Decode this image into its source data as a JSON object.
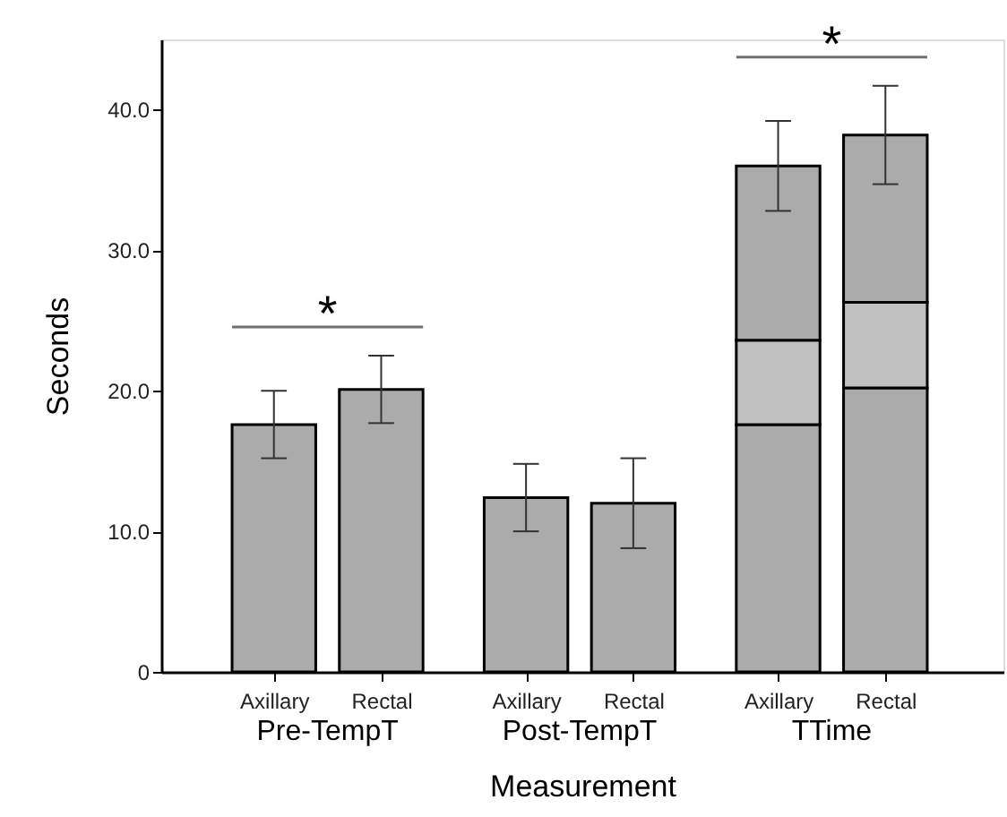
{
  "chart_data": {
    "type": "bar",
    "stacked": true,
    "xlabel": "Measurement",
    "ylabel": "Seconds",
    "categories": [
      "Axillary",
      "Rectal",
      "Axillary",
      "Rectal",
      "Axillary",
      "Rectal"
    ],
    "series": [
      {
        "color": "#ababab",
        "values": [
          17.6,
          20.1,
          null,
          null,
          17.6,
          20.2
        ],
        "errors": [
          2.4,
          2.4,
          null,
          null,
          null,
          null
        ]
      },
      {
        "color": "#c0c0c0",
        "values": [
          null,
          null,
          null,
          null,
          6.0,
          6.1
        ]
      },
      {
        "color": "#ababab",
        "values": [
          null,
          null,
          12.4,
          12.0,
          12.4,
          11.9
        ],
        "errors": [
          null,
          null,
          2.4,
          3.2,
          3.2,
          3.5
        ]
      }
    ],
    "ylim": [
      0,
      45
    ],
    "yticks": [
      0,
      {
        "value": 10,
        "label": "10.0"
      },
      {
        "value": 20,
        "label": "20.0"
      },
      {
        "value": 30,
        "label": "30.0"
      },
      {
        "value": 40,
        "label": "40.0"
      }
    ],
    "annotations": [
      "Pre-TempT",
      "Post-TempT",
      "TTime",
      "*",
      "*"
    ],
    "grid": false,
    "legend": false
  }
}
